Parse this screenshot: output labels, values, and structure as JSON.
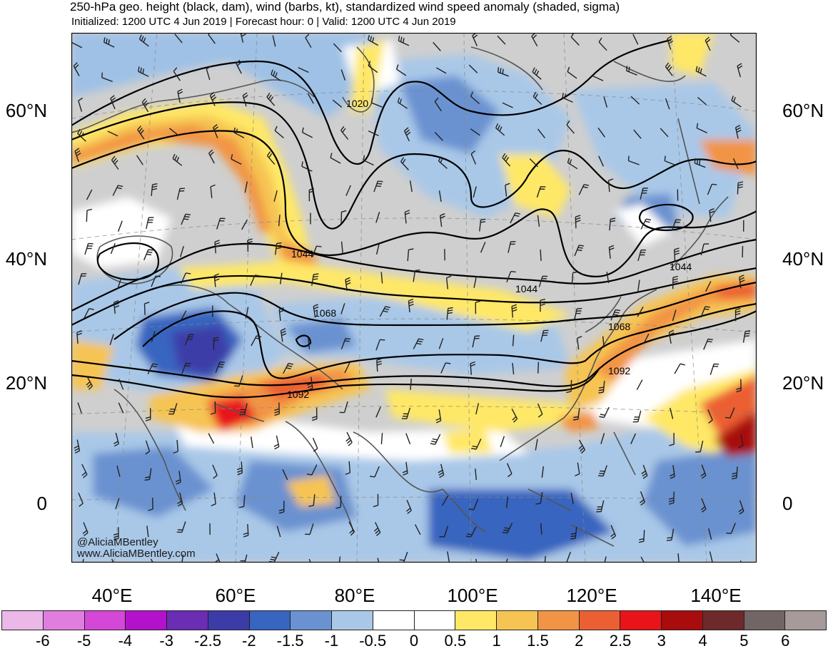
{
  "header": {
    "title": "250-hPa geo. height (black, dam), wind (barbs, kt), standardized wind speed anomaly (shaded, sigma)",
    "subtitle": "Initialized: 1200 UTC 4 Jun 2019 | Forecast hour: 0 | Valid: 1200 UTC 4 Jun 2019"
  },
  "map": {
    "lat_labels": [
      "60°N",
      "40°N",
      "20°N",
      "0"
    ],
    "lon_labels": [
      "40°E",
      "60°E",
      "80°E",
      "100°E",
      "120°E",
      "140°E"
    ],
    "contour_labels": [
      "1020",
      "1044",
      "1044",
      "1044",
      "1068",
      "1068",
      "1092",
      "1092"
    ],
    "credit_handle": "@AliciaMBentley",
    "credit_url": "www.AliciaMBentley.com"
  },
  "colorbar": {
    "labels": [
      "-6",
      "-5",
      "-4",
      "-3",
      "-2.5",
      "-2",
      "-1.5",
      "-1",
      "-0.5",
      "0",
      "0.5",
      "1",
      "1.5",
      "2",
      "2.5",
      "3",
      "4",
      "5",
      "6"
    ],
    "colors": [
      "#ecb8e8",
      "#e27de0",
      "#d447d7",
      "#b312cd",
      "#6a2db4",
      "#3c3ca8",
      "#3765bf",
      "#6a92d0",
      "#a9c8e8",
      "#ffffff",
      "#ffffff",
      "#ffe866",
      "#f6c452",
      "#f29445",
      "#ec5f33",
      "#e8141a",
      "#a80c0c",
      "#6e2a2a",
      "#726565",
      "#a69a9a"
    ]
  }
}
